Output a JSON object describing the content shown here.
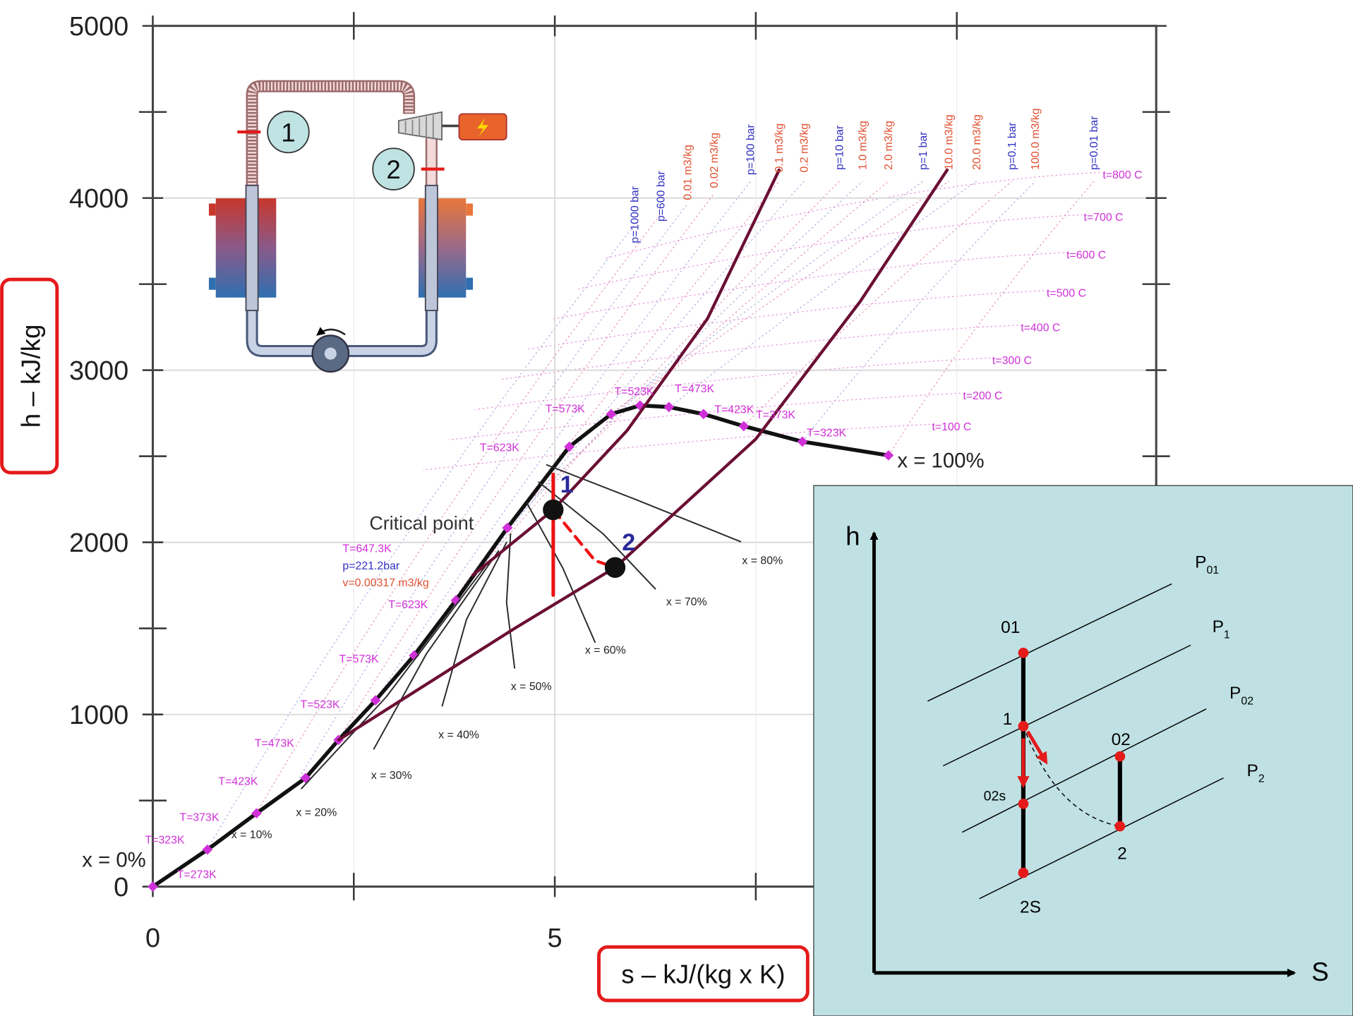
{
  "chart_data": {
    "type": "line",
    "x_label": "s – kJ/(kg x K)",
    "y_label": "h – kJ/kg",
    "xlim": [
      0,
      12.48
    ],
    "ylim": [
      0,
      5000
    ],
    "xticks": [
      0,
      5
    ],
    "x_minor_ticks": [
      2.5,
      7.5,
      10
    ],
    "yticks": [
      0,
      1000,
      2000,
      3000,
      4000,
      5000
    ],
    "y_minor_ticks": [
      500,
      1500,
      2500,
      3500,
      4500
    ],
    "grid": true,
    "series": [
      {
        "name": "x = 0%",
        "color": "#111111",
        "x": [
          0,
          0.68,
          1.29,
          1.9,
          2.31,
          2.77,
          3.25,
          3.77,
          4.41
        ],
        "values": [
          0,
          215,
          426,
          631,
          852,
          1082,
          1343,
          1663,
          2084
        ],
        "marker_color": "#d030d8"
      },
      {
        "name": "x = 100%",
        "color": "#111111",
        "x": [
          4.41,
          5.18,
          5.7,
          6.06,
          6.42,
          6.85,
          7.35,
          8.08,
          9.15
        ],
        "values": [
          2084,
          2555,
          2745,
          2795,
          2786,
          2745,
          2675,
          2585,
          2505
        ],
        "marker_color": "#d030d8"
      },
      {
        "name": "x = 20%",
        "color": "#2a2a2a",
        "x": [
          4.2,
          2.9,
          1.85
        ],
        "values": [
          1900,
          1100,
          570
        ]
      },
      {
        "name": "x = 30%",
        "color": "#2a2a2a",
        "x": [
          4.3,
          3.4,
          2.75
        ],
        "values": [
          1950,
          1350,
          800
        ]
      },
      {
        "name": "x = 40%",
        "color": "#2a2a2a",
        "x": [
          4.4,
          3.9,
          3.6
        ],
        "values": [
          2000,
          1550,
          1050
        ]
      },
      {
        "name": "x = 50%",
        "color": "#2a2a2a",
        "x": [
          4.45,
          4.4,
          4.5
        ],
        "values": [
          2050,
          1650,
          1270
        ]
      },
      {
        "name": "x = 60%",
        "color": "#2a2a2a",
        "x": [
          4.65,
          5.1,
          5.5
        ],
        "values": [
          2230,
          1850,
          1420
        ]
      },
      {
        "name": "x = 70%",
        "color": "#2a2a2a",
        "x": [
          4.8,
          5.6,
          6.25
        ],
        "values": [
          2350,
          2050,
          1730
        ]
      },
      {
        "name": "x = 80%",
        "color": "#2a2a2a",
        "x": [
          4.9,
          6.0,
          7.31
        ],
        "values": [
          2450,
          2250,
          2004
        ]
      },
      {
        "color": "#6b0f34",
        "x": [
          3.98,
          4.98,
          5.9,
          6.9,
          7.79
        ],
        "values": [
          1809,
          2189,
          2650,
          3300,
          4163
        ]
      },
      {
        "color": "#6b0f34",
        "x": [
          2.31,
          4.5,
          5.75,
          7.5,
          8.8,
          9.88
        ],
        "values": [
          852,
          1500,
          1854,
          2600,
          3400,
          4163
        ]
      },
      {
        "color": "#ee1111",
        "x": [
          4.98,
          4.98
        ],
        "values": [
          2395,
          1693
        ]
      },
      {
        "color": "#ee1111",
        "dashed": true,
        "x": [
          4.98,
          5.5,
          5.75
        ],
        "values": [
          2189,
          1894,
          1854
        ]
      }
    ],
    "points": [
      {
        "label": "1",
        "x": 4.98,
        "value": 2189,
        "color": "#111111",
        "label_color": "#2a2a9a"
      },
      {
        "label": "2",
        "x": 5.75,
        "value": 1854,
        "color": "#111111",
        "label_color": "#2a2a9a"
      }
    ],
    "x_10_label": "x = 10%",
    "annotations": [
      {
        "text": "T=273K",
        "color": "#d030d8"
      },
      {
        "text": "T=323K",
        "color": "#d030d8"
      },
      {
        "text": "T=373K",
        "color": "#d030d8"
      },
      {
        "text": "T=423K",
        "color": "#d030d8"
      },
      {
        "text": "T=473K",
        "color": "#d030d8"
      },
      {
        "text": "T=523K",
        "color": "#d030d8"
      },
      {
        "text": "T=573K",
        "color": "#d030d8"
      },
      {
        "text": "T=623K",
        "color": "#d030d8"
      },
      {
        "text": "T=623K",
        "color": "#d030d8"
      },
      {
        "text": "T=573K",
        "color": "#d030d8"
      },
      {
        "text": "T=523K",
        "color": "#d030d8"
      },
      {
        "text": "T=473K",
        "color": "#d030d8"
      },
      {
        "text": "T=423K",
        "color": "#d030d8"
      },
      {
        "text": "T=373K",
        "color": "#d030d8"
      },
      {
        "text": "T=323K",
        "color": "#d030d8"
      },
      {
        "text": "Critical point",
        "color": "#333333"
      },
      {
        "text": "T=647.3K",
        "color": "#d030d8"
      },
      {
        "text": "p=221.2bar",
        "color": "#3030c0"
      },
      {
        "text": "v=0.00317 m3/kg",
        "color": "#e05030"
      },
      {
        "text": "t=800 C",
        "color": "#d030d8"
      },
      {
        "text": "t=700 C",
        "color": "#d030d8"
      },
      {
        "text": "t=600 C",
        "color": "#d030d8"
      },
      {
        "text": "t=500 C",
        "color": "#d030d8"
      },
      {
        "text": "t=400 C",
        "color": "#d030d8"
      },
      {
        "text": "t=300 C",
        "color": "#d030d8"
      },
      {
        "text": "t=200 C",
        "color": "#d030d8"
      },
      {
        "text": "t=100 C",
        "color": "#d030d8"
      },
      {
        "text": "p=1000 bar",
        "color": "#3030c0"
      },
      {
        "text": "p=600 bar",
        "color": "#3030c0"
      },
      {
        "text": "0.01 m3/kg",
        "color": "#e05030"
      },
      {
        "text": "0.02 m3/kg",
        "color": "#e05030"
      },
      {
        "text": "p=100 bar",
        "color": "#3030c0"
      },
      {
        "text": "0.1 m3/kg",
        "color": "#e05030"
      },
      {
        "text": "0.2 m3/kg",
        "color": "#e05030"
      },
      {
        "text": "p=10 bar",
        "color": "#3030c0"
      },
      {
        "text": "1.0 m3/kg",
        "color": "#e05030"
      },
      {
        "text": "2.0 m3/kg",
        "color": "#e05030"
      },
      {
        "text": "p=1 bar",
        "color": "#3030c0"
      },
      {
        "text": "10.0 m3/kg",
        "color": "#e05030"
      },
      {
        "text": "20.0 m3/kg",
        "color": "#e05030"
      },
      {
        "text": "p=0.1 bar",
        "color": "#3030c0"
      },
      {
        "text": "100.0 m3/kg",
        "color": "#e05030"
      },
      {
        "text": "p=0.01 bar",
        "color": "#3030c0"
      }
    ]
  },
  "schematic": {
    "states": [
      "1",
      "2"
    ]
  },
  "inset": {
    "h_axis": "h",
    "s_axis": "S",
    "isobars": [
      {
        "base": "P",
        "sub": "01"
      },
      {
        "base": "P",
        "sub": "1"
      },
      {
        "base": "P",
        "sub": "02"
      },
      {
        "base": "P",
        "sub": "2"
      }
    ],
    "states": [
      "01",
      "1",
      "02s",
      "2S",
      "02",
      "2"
    ]
  }
}
